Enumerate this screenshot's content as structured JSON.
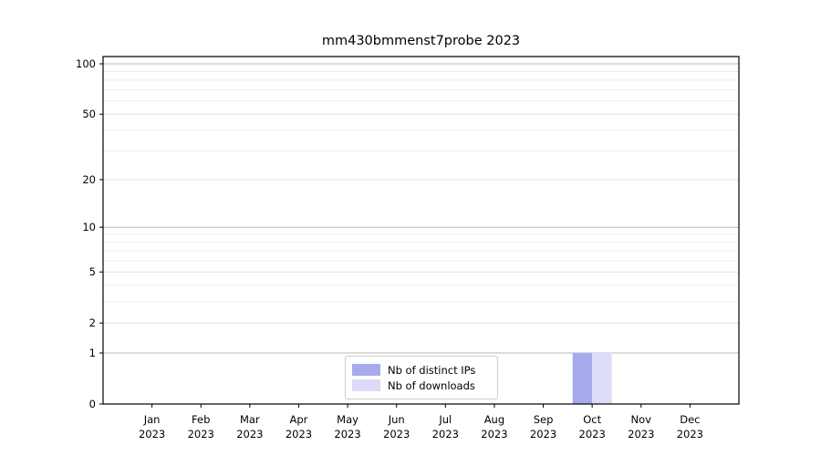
{
  "page": {
    "background": "#ffffff"
  },
  "chart_data": {
    "type": "bar",
    "title": "mm430bmmenst7probe 2023",
    "categories": [
      "Jan 2023",
      "Feb 2023",
      "Mar 2023",
      "Apr 2023",
      "May 2023",
      "Jun 2023",
      "Jul 2023",
      "Aug 2023",
      "Sep 2023",
      "Oct 2023",
      "Nov 2023",
      "Dec 2023"
    ],
    "series": [
      {
        "name": "Nb of distinct IPs",
        "color": "#a9a9ee",
        "values": [
          0,
          0,
          0,
          0,
          0,
          0,
          0,
          0,
          0,
          1,
          0,
          0
        ]
      },
      {
        "name": "Nb of downloads",
        "color": "#dcdcf8",
        "values": [
          0,
          0,
          0,
          0,
          0,
          0,
          0,
          0,
          0,
          1,
          0,
          0
        ]
      }
    ],
    "xlabel": "",
    "ylabel": "",
    "y_scale": "log1p",
    "y_ticks": [
      0,
      1,
      2,
      5,
      10,
      20,
      50,
      100
    ],
    "y_minor_ticks": [
      3,
      4,
      6,
      7,
      8,
      9,
      30,
      40,
      60,
      70,
      80,
      90
    ],
    "ylim": [
      0,
      111
    ],
    "grid": "horizontal",
    "legend_position": "lower center"
  },
  "style": {
    "axis_color": "#000000",
    "grid_major_color": "#b9b9b9",
    "grid_mid_color": "#e0e0e0",
    "grid_minor_color": "#eeeeee",
    "tick_label_color": "#000000",
    "legend_border_color": "#cccccc"
  }
}
